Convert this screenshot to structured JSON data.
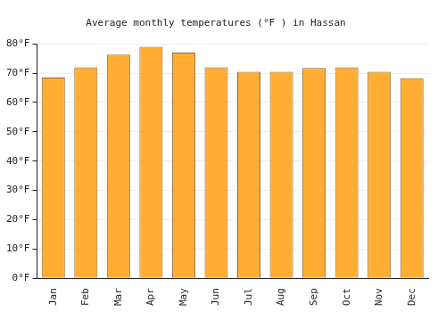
{
  "chart_data": {
    "type": "bar",
    "title": "Average monthly temperatures (°F ) in Hassan",
    "categories": [
      "Jan",
      "Feb",
      "Mar",
      "Apr",
      "May",
      "Jun",
      "Jul",
      "Aug",
      "Sep",
      "Oct",
      "Nov",
      "Dec"
    ],
    "values": [
      68.5,
      72,
      76.3,
      79,
      77,
      72,
      70.5,
      70.5,
      71.8,
      72,
      70.5,
      68.3
    ],
    "color": "#ffad33",
    "ylim": [
      0,
      80
    ],
    "yticks": [
      {
        "value": 0,
        "label": "0°F"
      },
      {
        "value": 10,
        "label": "10°F"
      },
      {
        "value": 20,
        "label": "20°F"
      },
      {
        "value": 30,
        "label": "30°F"
      },
      {
        "value": 40,
        "label": "40°F"
      },
      {
        "value": 50,
        "label": "50°F"
      },
      {
        "value": 60,
        "label": "60°F"
      },
      {
        "value": 70,
        "label": "70°F"
      },
      {
        "value": 80,
        "label": "80°F"
      }
    ],
    "grid": true
  }
}
